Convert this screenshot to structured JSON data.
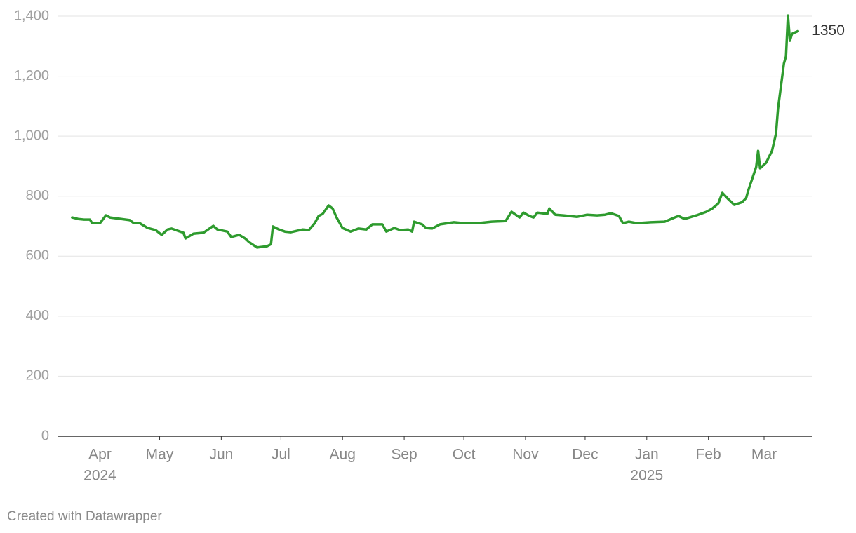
{
  "chart_data": {
    "type": "line",
    "color": "#2e9b2e",
    "grid": true,
    "x": [
      "2024-03-18",
      "2024-03-21",
      "2024-03-24",
      "2024-03-27",
      "2024-03-28",
      "2024-04-01",
      "2024-04-04",
      "2024-04-06",
      "2024-04-16",
      "2024-04-18",
      "2024-04-21",
      "2024-04-25",
      "2024-04-29",
      "2024-05-02",
      "2024-05-05",
      "2024-05-07",
      "2024-05-13",
      "2024-05-14",
      "2024-05-18",
      "2024-05-23",
      "2024-05-28",
      "2024-05-30",
      "2024-06-04",
      "2024-06-06",
      "2024-06-10",
      "2024-06-13",
      "2024-06-15",
      "2024-06-19",
      "2024-06-24",
      "2024-06-26",
      "2024-06-27",
      "2024-06-30",
      "2024-07-03",
      "2024-07-06",
      "2024-07-12",
      "2024-07-15",
      "2024-07-18",
      "2024-07-20",
      "2024-07-22",
      "2024-07-25",
      "2024-07-27",
      "2024-07-29",
      "2024-08-01",
      "2024-08-05",
      "2024-08-09",
      "2024-08-13",
      "2024-08-16",
      "2024-08-21",
      "2024-08-23",
      "2024-08-27",
      "2024-08-30",
      "2024-09-03",
      "2024-09-05",
      "2024-09-06",
      "2024-09-10",
      "2024-09-12",
      "2024-09-15",
      "2024-09-19",
      "2024-09-26",
      "2024-10-01",
      "2024-10-08",
      "2024-10-15",
      "2024-10-22",
      "2024-10-25",
      "2024-10-29",
      "2024-10-31",
      "2024-11-03",
      "2024-11-05",
      "2024-11-07",
      "2024-11-12",
      "2024-11-13",
      "2024-11-16",
      "2024-11-20",
      "2024-11-27",
      "2024-12-02",
      "2024-12-07",
      "2024-12-11",
      "2024-12-14",
      "2024-12-18",
      "2024-12-20",
      "2024-12-23",
      "2024-12-27",
      "2025-01-03",
      "2025-01-10",
      "2025-01-15",
      "2025-01-17",
      "2025-01-20",
      "2025-01-26",
      "2025-01-31",
      "2025-02-03",
      "2025-02-06",
      "2025-02-08",
      "2025-02-11",
      "2025-02-14",
      "2025-02-18",
      "2025-02-20",
      "2025-02-21",
      "2025-02-25",
      "2025-02-26",
      "2025-02-27",
      "2025-03-02",
      "2025-03-05",
      "2025-03-07",
      "2025-03-08",
      "2025-03-11",
      "2025-03-12",
      "2025-03-13",
      "2025-03-14",
      "2025-03-15",
      "2025-03-18"
    ],
    "values": [
      729,
      724,
      722,
      722,
      710,
      710,
      736,
      729,
      720,
      710,
      710,
      694,
      687,
      671,
      689,
      692,
      678,
      659,
      675,
      678,
      701,
      689,
      682,
      664,
      671,
      659,
      647,
      629,
      633,
      640,
      699,
      689,
      682,
      680,
      689,
      687,
      710,
      734,
      741,
      769,
      759,
      729,
      694,
      682,
      692,
      689,
      706,
      706,
      682,
      694,
      687,
      689,
      682,
      715,
      706,
      694,
      692,
      706,
      713,
      710,
      710,
      715,
      717,
      748,
      729,
      745,
      734,
      729,
      745,
      741,
      759,
      738,
      736,
      731,
      738,
      736,
      738,
      743,
      734,
      710,
      715,
      710,
      713,
      715,
      729,
      734,
      724,
      736,
      748,
      759,
      776,
      811,
      790,
      771,
      780,
      794,
      818,
      897,
      951,
      893,
      911,
      951,
      1009,
      1091,
      1243,
      1266,
      1402,
      1318,
      1341,
      1350
    ],
    "xlim": [
      "2024-03-11",
      "2025-03-25"
    ],
    "xticks": [
      {
        "value": "2024-04",
        "label": "Apr"
      },
      {
        "value": "2024-05",
        "label": "May"
      },
      {
        "value": "2024-06",
        "label": "Jun"
      },
      {
        "value": "2024-07",
        "label": "Jul"
      },
      {
        "value": "2024-08",
        "label": "Aug"
      },
      {
        "value": "2024-09",
        "label": "Sep"
      },
      {
        "value": "2024-10",
        "label": "Oct"
      },
      {
        "value": "2024-11",
        "label": "Nov"
      },
      {
        "value": "2024-12",
        "label": "Dec"
      },
      {
        "value": "2025-01",
        "label": "Jan"
      },
      {
        "value": "2025-02",
        "label": "Feb"
      },
      {
        "value": "2025-03",
        "label": "Mar"
      }
    ],
    "xtick_years": [
      {
        "value": "2024-04",
        "label": "2024"
      },
      {
        "value": "2025-01",
        "label": "2025"
      }
    ],
    "ylim": [
      0,
      1400
    ],
    "yticks": [
      0,
      200,
      400,
      600,
      800,
      {
        "value": 1000,
        "label": "1,000"
      },
      {
        "value": 1200,
        "label": "1,200"
      },
      {
        "value": 1400,
        "label": "1,400"
      }
    ],
    "footer": "Created with Datawrapper"
  }
}
